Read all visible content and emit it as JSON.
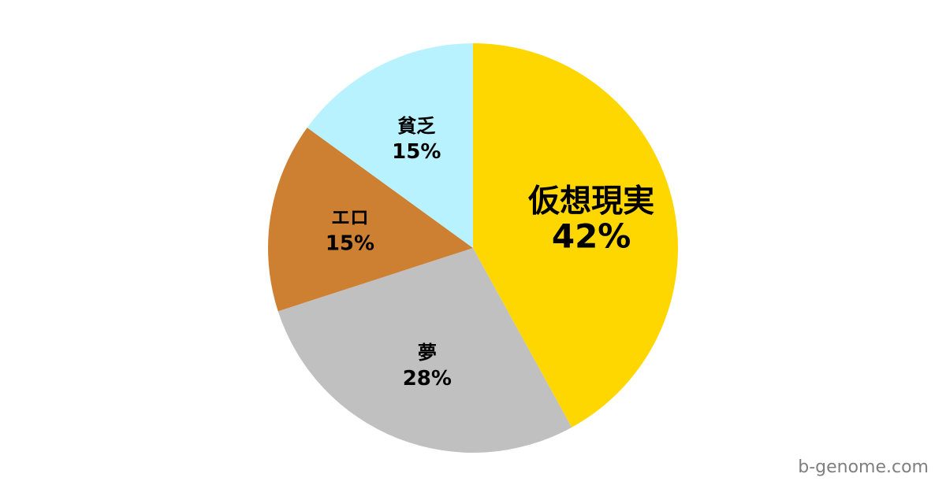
{
  "chart_data": {
    "type": "pie",
    "start": "top",
    "direction": "clockwise",
    "slices": [
      {
        "label": "仮想現実",
        "value": 42,
        "display": "42%",
        "color": "#FFD700",
        "emphasis": true
      },
      {
        "label": "夢",
        "value": 28,
        "display": "28%",
        "color": "#C0C0C0"
      },
      {
        "label": "エロ",
        "value": 15,
        "display": "15%",
        "color": "#CD7F32"
      },
      {
        "label": "貧乏",
        "value": 15,
        "display": "15%",
        "color": "#B8F2FF"
      }
    ]
  },
  "watermark": "b-genome.com"
}
